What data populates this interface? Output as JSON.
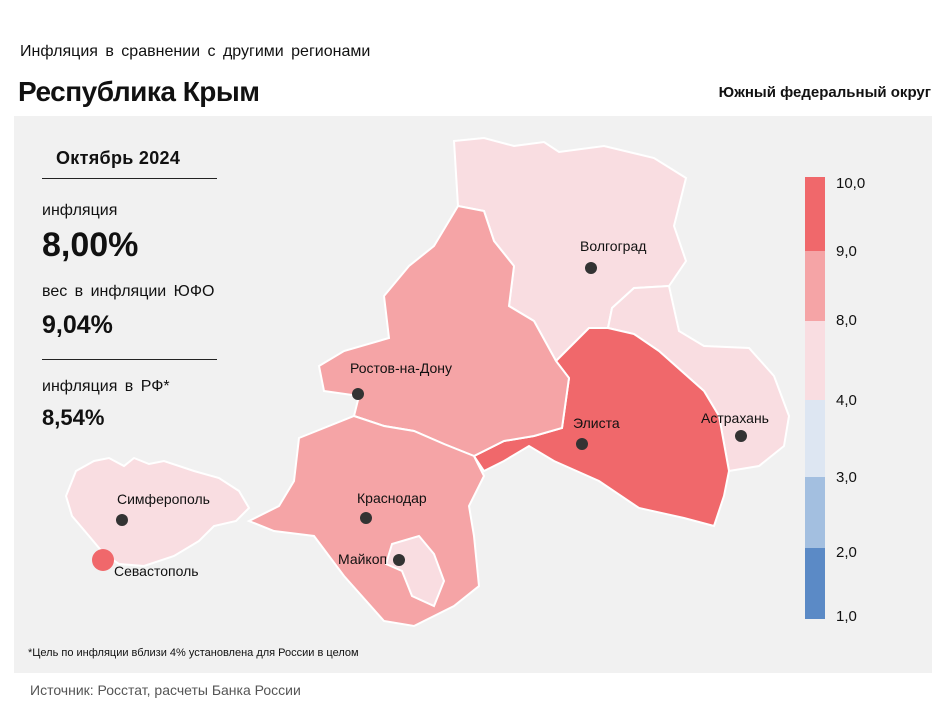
{
  "header": {
    "subtitle": "Инфляция в сравнении с другими регионами",
    "title": "Республика Крым",
    "district": "Южный федеральный округ"
  },
  "info": {
    "period": "Октябрь 2024",
    "inflation_label": "инфляция",
    "inflation_value": "8,00%",
    "weight_label": "вес в инфляции ЮФО",
    "weight_value": "9,04%",
    "rf_label": "инфляция в РФ*",
    "rf_value": "8,54%"
  },
  "cities": {
    "volgograd": "Волгоград",
    "rostov": "Ростов-на-Дону",
    "elista": "Элиста",
    "astrakhan": "Астрахань",
    "simferopol": "Симферополь",
    "krasnodar": "Краснодар",
    "maykop": "Майкоп",
    "sevastopol": "Севастополь"
  },
  "legend": {
    "ticks": [
      "10,0",
      "9,0",
      "8,0",
      "4,0",
      "3,0",
      "2,0",
      "1,0"
    ],
    "colors": [
      "#f0686b",
      "#f5a4a6",
      "#f9dde1",
      "#dde6f2",
      "#a3bfe0",
      "#5b8ac6"
    ]
  },
  "colors": {
    "highest": "#f0686b",
    "high": "#f5a4a6",
    "moderate": "#f9dde1",
    "panel": "#f1f1f1"
  },
  "footnote": "*Цель по инфляции вблизи 4% установлена для России в целом",
  "source": "Источник: Росстат, расчеты Банка России"
}
